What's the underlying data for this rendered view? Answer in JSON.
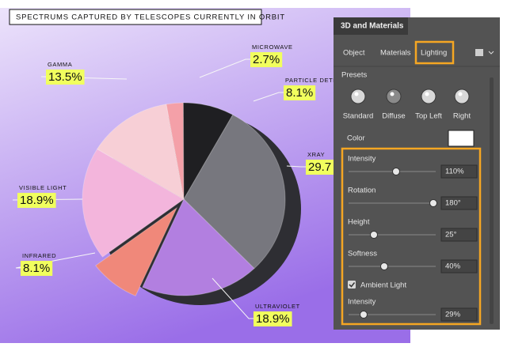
{
  "artwork": {
    "title": "SPECTRUMS CAPTURED BY TELESCOPES CURRENTLY IN ORBIT",
    "slices": [
      {
        "name": "MICROWAVE",
        "value": 2.7,
        "value_label": "2.7%",
        "color": "#f4a0a8"
      },
      {
        "name": "PARTICLE DETEC",
        "value": 8.1,
        "value_label": "8.1%",
        "color": "#1f1f22"
      },
      {
        "name": "XRAY",
        "value": 29.7,
        "value_label": "29.7",
        "color": "#77777e"
      },
      {
        "name": "ULTRAVIOLET",
        "value": 18.9,
        "value_label": "18.9%",
        "color": "#b27fe0"
      },
      {
        "name": "INFRARED",
        "value": 8.1,
        "value_label": "8.1%",
        "color": "#f0887a"
      },
      {
        "name": "VISIBLE LIGHT",
        "value": 18.9,
        "value_label": "18.9%",
        "color": "#f3b5dc"
      },
      {
        "name": "GAMMA",
        "value": 13.5,
        "value_label": "13.5%",
        "color": "#f7cfd6"
      }
    ]
  },
  "panel": {
    "title": "3D and Materials",
    "tabs": [
      "Object",
      "Materials",
      "Lighting"
    ],
    "presets_heading": "Presets",
    "presets": [
      "Standard",
      "Diffuse",
      "Top Left",
      "Right"
    ],
    "color_label": "Color",
    "controls": [
      {
        "label": "Intensity",
        "value": "110%"
      },
      {
        "label": "Rotation",
        "value": "180°"
      },
      {
        "label": "Height",
        "value": "25°"
      },
      {
        "label": "Softness",
        "value": "40%"
      }
    ],
    "ambient_light": {
      "label": "Ambient Light",
      "intensity": {
        "label": "Intensity",
        "value": "29%"
      }
    }
  }
}
